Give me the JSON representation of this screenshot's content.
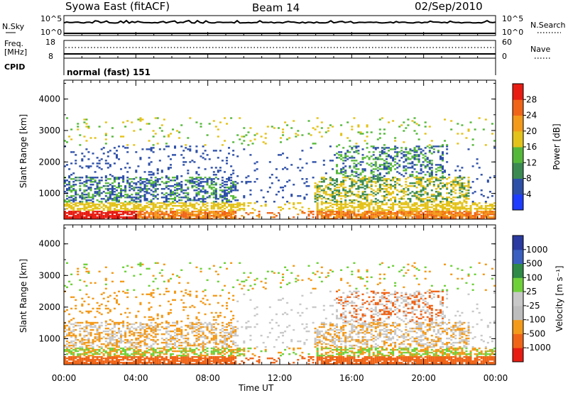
{
  "header": {
    "station": "Syowa East (fitACF)",
    "beam": "Beam 14",
    "date": "02/Sep/2010"
  },
  "colors": {
    "power": [
      "#1e3cff",
      "#2d4fa8",
      "#3a8a52",
      "#55b83a",
      "#e3c21a",
      "#f39a1a",
      "#f06418",
      "#e81c12"
    ],
    "velocity": [
      "#2a3aa0",
      "#3a5fc0",
      "#2e8a46",
      "#6fd13a",
      "#c8c8c8",
      "#bdbdbd",
      "#f39a1a",
      "#f06418",
      "#e81c12"
    ]
  },
  "chart_data": [
    {
      "type": "line",
      "name": "n-sky-panel",
      "left_label": "N.Sky",
      "right_label": "N.Search",
      "left_ticks": [
        "10^5",
        "10^0"
      ],
      "right_ticks": [
        "10^5",
        "10^0"
      ],
      "x": [
        "00:00",
        "04:00",
        "08:00",
        "12:00",
        "16:00",
        "20:00",
        "00:00"
      ]
    },
    {
      "type": "line",
      "name": "frequency-panel",
      "left_label_line1": "Freq.",
      "left_label_line2": "[MHz]",
      "right_label": "Nave",
      "left_ticks": [
        "18",
        "8"
      ],
      "right_ticks": [
        "60",
        "0"
      ],
      "frequency_mhz": 10.5,
      "nave": 30
    },
    {
      "type": "table",
      "name": "cpid-panel",
      "label": "CPID",
      "mode": "normal (fast) 151"
    },
    {
      "type": "heatmap",
      "name": "power-panel",
      "ylabel": "Slant Range [km]",
      "yticks": [
        "4000",
        "3000",
        "2000",
        "1000"
      ],
      "ylim": [
        180,
        4600
      ],
      "xlim_hours": [
        0,
        24
      ],
      "colorbar_label": "Power [dB]",
      "colorbar_ticks": [
        "28",
        "24",
        "20",
        "16",
        "12",
        "8",
        "4"
      ],
      "colorbar_range": [
        0,
        32
      ]
    },
    {
      "type": "heatmap",
      "name": "velocity-panel",
      "ylabel": "Slant Range [km]",
      "yticks": [
        "4000",
        "3000",
        "2000",
        "1000"
      ],
      "ylim": [
        180,
        4600
      ],
      "xlim_hours": [
        0,
        24
      ],
      "xlabel": "Time UT",
      "xticks": [
        "00:00",
        "04:00",
        "08:00",
        "12:00",
        "16:00",
        "20:00",
        "00:00"
      ],
      "colorbar_label": "Velocity [m s⁻¹]",
      "colorbar_ticks": [
        "1000",
        "500",
        "100",
        "25",
        "-25",
        "-100",
        "-500",
        "-1000"
      ]
    }
  ]
}
